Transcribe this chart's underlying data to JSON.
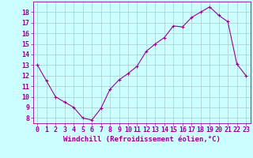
{
  "x": [
    0,
    1,
    2,
    3,
    4,
    5,
    6,
    7,
    8,
    9,
    10,
    11,
    12,
    13,
    14,
    15,
    16,
    17,
    18,
    19,
    20,
    21,
    22,
    23
  ],
  "y": [
    13.0,
    11.5,
    10.0,
    9.5,
    9.0,
    8.0,
    7.8,
    8.9,
    10.7,
    11.6,
    12.2,
    12.9,
    14.3,
    15.0,
    15.6,
    16.7,
    16.6,
    17.5,
    18.0,
    18.5,
    17.7,
    17.1,
    13.1,
    12.0
  ],
  "line_color": "#990099",
  "marker": "+",
  "marker_size": 3,
  "bg_color": "#ccffff",
  "grid_color": "#aacccc",
  "xlabel": "Windchill (Refroidissement éolien,°C)",
  "xlabel_fontsize": 6.5,
  "tick_fontsize": 6,
  "ylim": [
    7.5,
    19.0
  ],
  "xlim": [
    -0.5,
    23.5
  ],
  "yticks": [
    8,
    9,
    10,
    11,
    12,
    13,
    14,
    15,
    16,
    17,
    18
  ],
  "xticks": [
    0,
    1,
    2,
    3,
    4,
    5,
    6,
    7,
    8,
    9,
    10,
    11,
    12,
    13,
    14,
    15,
    16,
    17,
    18,
    19,
    20,
    21,
    22,
    23
  ],
  "xtick_labels": [
    "0",
    "1",
    "2",
    "3",
    "4",
    "5",
    "6",
    "7",
    "8",
    "9",
    "10",
    "11",
    "12",
    "13",
    "14",
    "15",
    "16",
    "17",
    "18",
    "19",
    "20",
    "21",
    "22",
    "23"
  ]
}
